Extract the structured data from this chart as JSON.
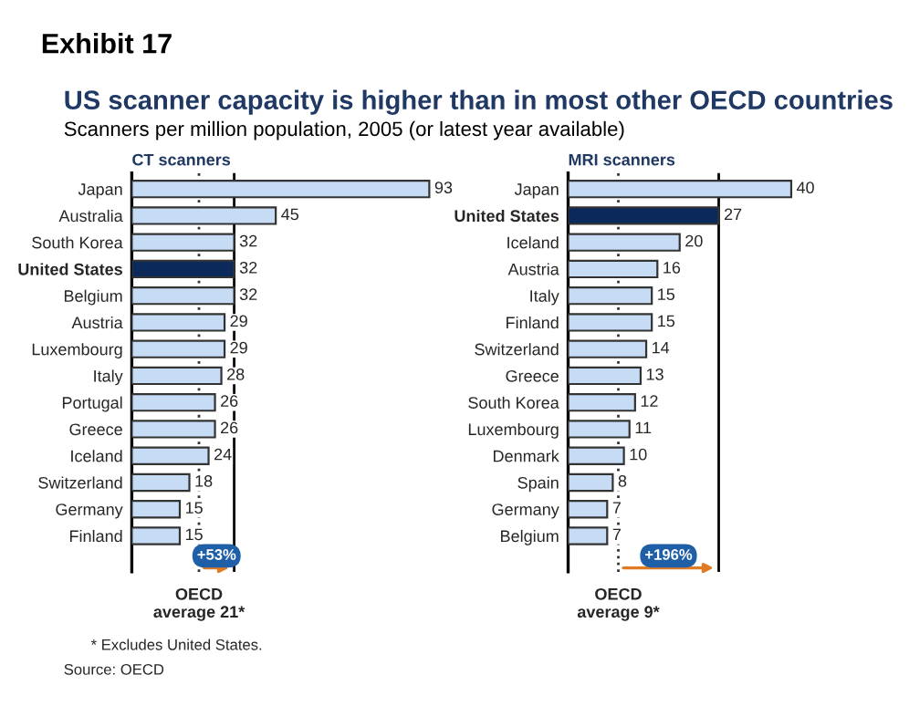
{
  "chart_data": [
    {
      "type": "bar",
      "orientation": "horizontal",
      "title": "CT scanners",
      "annotations": [
        "Exhibit 17",
        "US scanner capacity is higher than in most other OECD countries",
        "Scanners per million population, 2005 (or latest year available)",
        "+53%",
        "* Excludes United States.",
        "Source: OECD"
      ],
      "categories": [
        "Japan",
        "Australia",
        "South Korea",
        "United States",
        "Belgium",
        "Austria",
        "Luxembourg",
        "Italy",
        "Portugal",
        "Greece",
        "Iceland",
        "Switzerland",
        "Germany",
        "Finland"
      ],
      "values": [
        93,
        45,
        32,
        32,
        32,
        29,
        29,
        28,
        26,
        26,
        24,
        18,
        15,
        15
      ],
      "colors": [
        "#c6dcf5",
        "#c6dcf5",
        "#c6dcf5",
        "#0b2a5b",
        "#c6dcf5",
        "#c6dcf5",
        "#c6dcf5",
        "#c6dcf5",
        "#c6dcf5",
        "#c6dcf5",
        "#c6dcf5",
        "#c6dcf5",
        "#c6dcf5",
        "#c6dcf5"
      ],
      "data_labels": true,
      "tick_labels": "y",
      "grid": false,
      "legend": false,
      "ref_lines": [
        {
          "axis": "x",
          "value": 21,
          "label": "OECD\naverage 21*",
          "line_style": "dotted",
          "color": "#333333"
        },
        {
          "axis": "x",
          "value": 32,
          "label": null,
          "line_style": "solid",
          "color": "#000000"
        }
      ]
    },
    {
      "type": "bar",
      "orientation": "horizontal",
      "title": "MRI scanners",
      "annotations": [
        "+196%"
      ],
      "categories": [
        "Japan",
        "United States",
        "Iceland",
        "Austria",
        "Italy",
        "Finland",
        "Switzerland",
        "Greece",
        "South Korea",
        "Luxembourg",
        "Denmark",
        "Spain",
        "Germany",
        "Belgium"
      ],
      "values": [
        40,
        27,
        20,
        16,
        15,
        15,
        14,
        13,
        12,
        11,
        10,
        8,
        7,
        7
      ],
      "colors": [
        "#c6dcf5",
        "#0b2a5b",
        "#c6dcf5",
        "#c6dcf5",
        "#c6dcf5",
        "#c6dcf5",
        "#c6dcf5",
        "#c6dcf5",
        "#c6dcf5",
        "#c6dcf5",
        "#c6dcf5",
        "#c6dcf5",
        "#c6dcf5",
        "#c6dcf5"
      ],
      "data_labels": true,
      "tick_labels": "y",
      "grid": false,
      "legend": false,
      "ref_lines": [
        {
          "axis": "x",
          "value": 9,
          "label": "OECD\naverage 9*",
          "line_style": "dotted",
          "color": "#333333"
        },
        {
          "axis": "x",
          "value": 27,
          "label": null,
          "line_style": "solid",
          "color": "#000000"
        }
      ]
    }
  ]
}
